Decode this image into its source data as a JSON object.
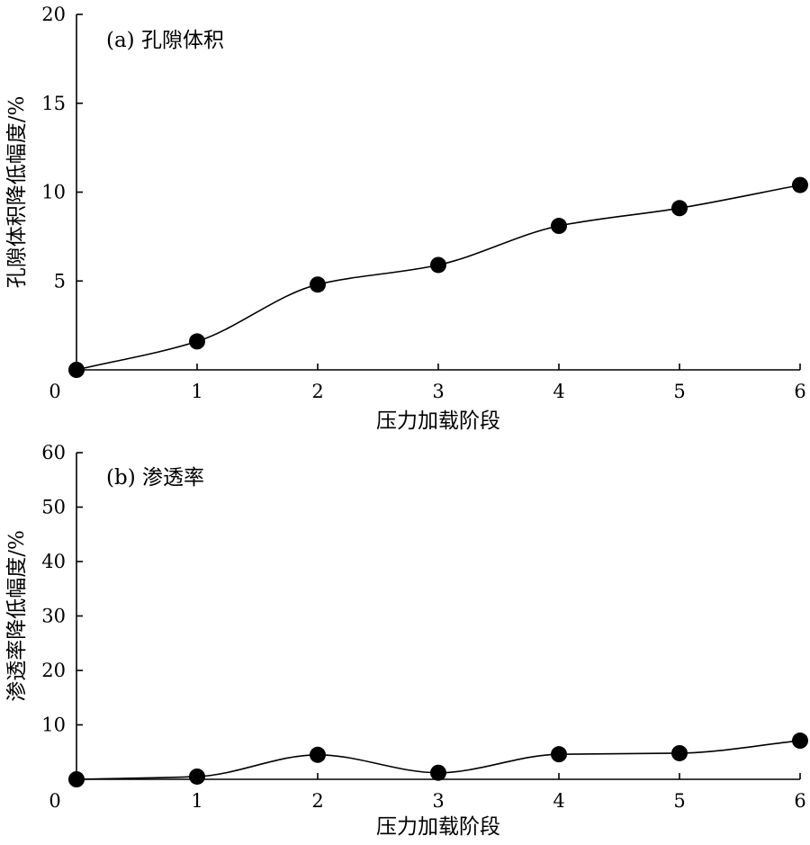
{
  "chart_data": [
    {
      "type": "line",
      "panel_label": "(a) 孔隙体积",
      "xlabel": "压力加载阶段",
      "ylabel": "孔隙体积降低幅度/%",
      "x": [
        0,
        1,
        2,
        3,
        4,
        5,
        6
      ],
      "values": [
        0.0,
        1.6,
        4.8,
        5.9,
        8.1,
        9.1,
        10.4
      ],
      "xticks": [
        "0",
        "1",
        "2",
        "3",
        "4",
        "5",
        "6"
      ],
      "yticks": [
        "5",
        "10",
        "15",
        "20"
      ],
      "xlim": [
        0,
        6
      ],
      "ylim": [
        0,
        20
      ],
      "smooth": true,
      "marker": "filled-circle",
      "grid": false
    },
    {
      "type": "line",
      "panel_label": "(b) 渗透率",
      "xlabel": "压力加载阶段",
      "ylabel": "渗透率降低幅度/%",
      "x": [
        0,
        1,
        2,
        3,
        4,
        5,
        6
      ],
      "values": [
        0.0,
        0.5,
        4.5,
        1.2,
        4.6,
        4.8,
        7.1
      ],
      "xticks": [
        "0",
        "1",
        "2",
        "3",
        "4",
        "5",
        "6"
      ],
      "yticks": [
        "10",
        "20",
        "30",
        "40",
        "50",
        "60"
      ],
      "xlim": [
        0,
        6
      ],
      "ylim": [
        0,
        60
      ],
      "smooth": true,
      "marker": "filled-circle",
      "grid": false
    }
  ]
}
